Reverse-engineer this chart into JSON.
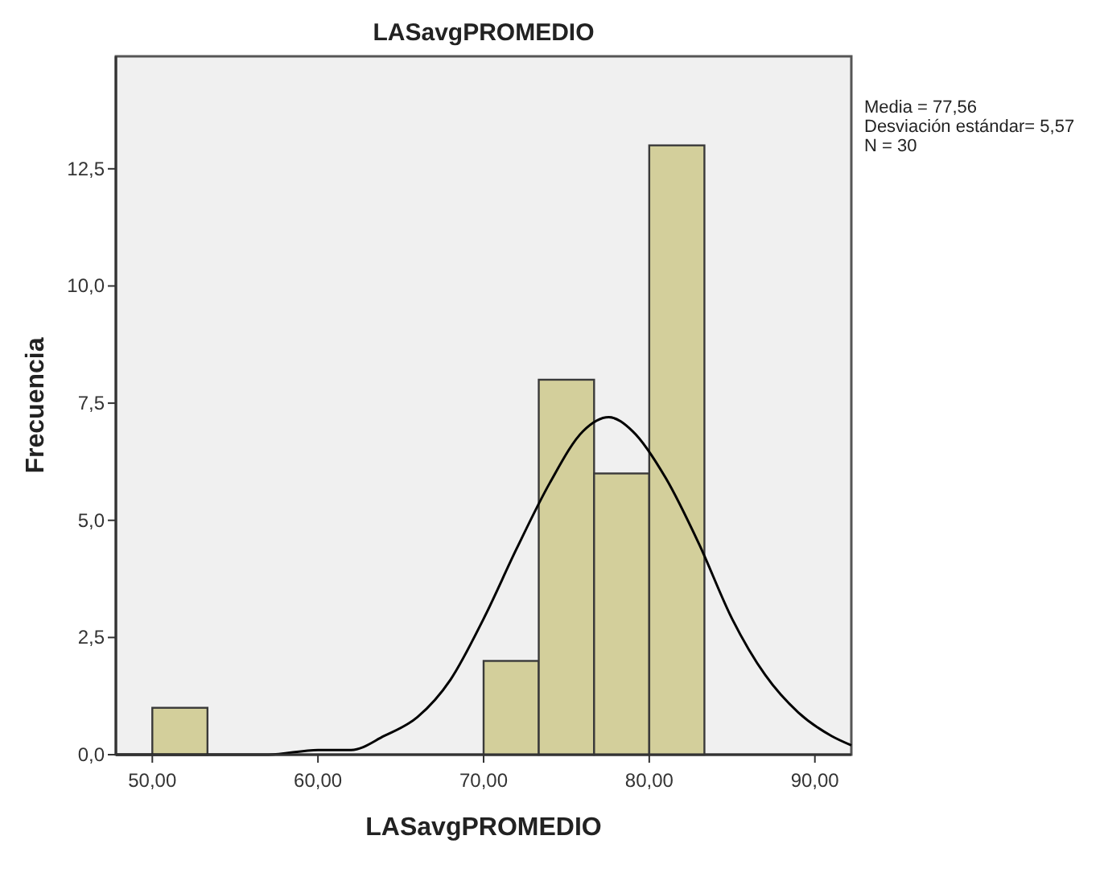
{
  "chart_data": {
    "type": "histogram",
    "title": "LASavgPROMEDIO",
    "xlabel": "LASavgPROMEDIO",
    "ylabel": "Frecuencia",
    "bins": [
      50,
      53.33,
      56.67,
      60,
      63.33,
      66.67,
      70,
      73.33,
      76.67,
      80,
      83.33
    ],
    "values": [
      1,
      0,
      0,
      0,
      0,
      0,
      2,
      8,
      6,
      13
    ],
    "color": "#d3cf9b",
    "series": [
      {
        "type": "line",
        "color": "#000000",
        "x": [
          47.8,
          50,
          55,
          57,
          60,
          62,
          64,
          66,
          68,
          70,
          72,
          74,
          76,
          77.56,
          79,
          81,
          83,
          85,
          87,
          89,
          91,
          92.2
        ],
        "values": [
          0,
          0,
          0,
          0,
          0.1,
          0.1,
          0.4,
          0.8,
          1.6,
          2.9,
          4.4,
          5.8,
          6.9,
          7.2,
          6.9,
          5.9,
          4.5,
          2.9,
          1.7,
          0.9,
          0.4,
          0.2
        ]
      }
    ],
    "xlim": [
      47.8,
      92.2
    ],
    "ylim": [
      0,
      14.9
    ],
    "xticks": [
      {
        "value": 50,
        "label": "50,00"
      },
      {
        "value": 60,
        "label": "60,00"
      },
      {
        "value": 70,
        "label": "70,00"
      },
      {
        "value": 80,
        "label": "80,00"
      },
      {
        "value": 90,
        "label": "90,00"
      }
    ],
    "yticks": [
      {
        "value": 0,
        "label": "0,0"
      },
      {
        "value": 2.5,
        "label": "2,5"
      },
      {
        "value": 5,
        "label": "5,0"
      },
      {
        "value": 7.5,
        "label": "7,5"
      },
      {
        "value": 10,
        "label": "10,0"
      },
      {
        "value": 12.5,
        "label": "12,5"
      }
    ],
    "grid": false,
    "annotations": [
      "Media = 77,56",
      "Desviación estándar= 5,57",
      "N = 30"
    ]
  }
}
